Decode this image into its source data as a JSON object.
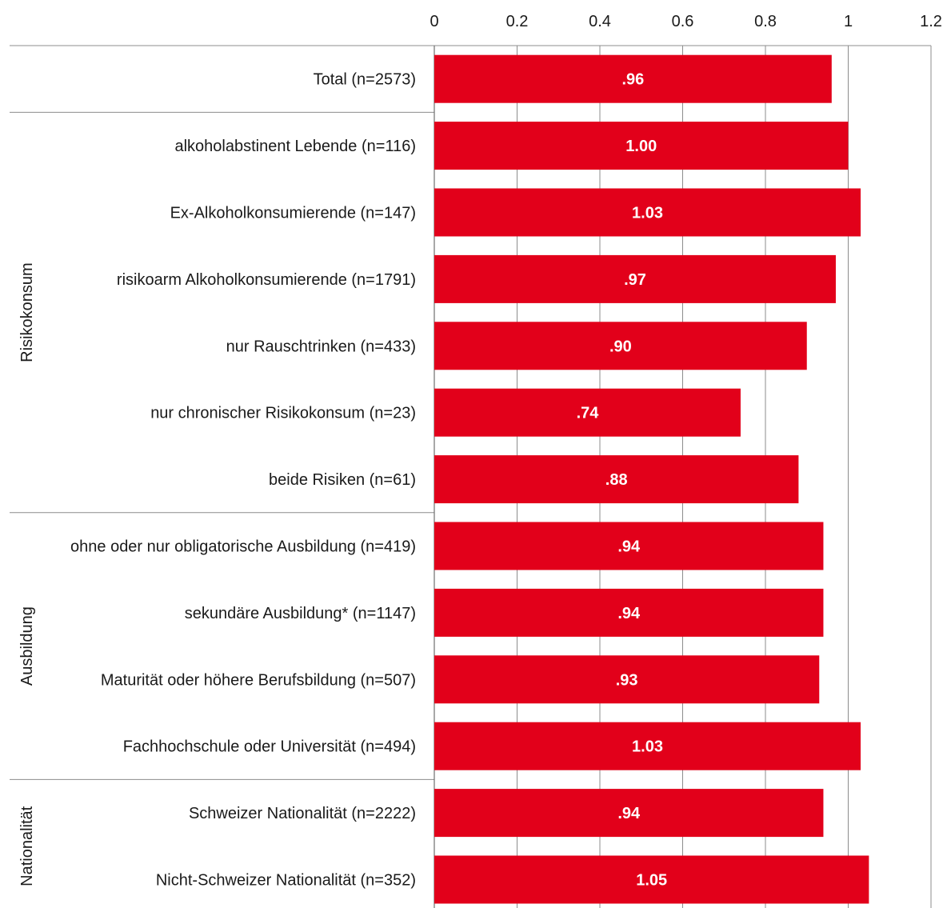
{
  "chart_data": {
    "type": "bar",
    "orientation": "horizontal",
    "title": "",
    "xlabel": "",
    "ylabel": "",
    "xlim": [
      0,
      1.2
    ],
    "x_ticks": [
      0,
      0.2,
      0.4,
      0.6,
      0.8,
      1,
      1.2
    ],
    "x_tick_labels": [
      "0",
      "0.2",
      "0.4",
      "0.6",
      "0.8",
      "1",
      "1.2"
    ],
    "grid": true,
    "legend": "none",
    "bar_color": "#e2001a",
    "categories": [
      "Total (n=2573)",
      "alkoholabstinent Lebende (n=116)",
      "Ex-Alkoholkonsumierende (n=147)",
      "risikoarm Alkoholkonsumierende (n=1791)",
      "nur Rauschtrinken (n=433)",
      "nur chronischer Risikokonsum (n=23)",
      "beide Risiken (n=61)",
      "ohne oder nur obligatorische Ausbildung (n=419)",
      "sekundäre Ausbildung* (n=1147)",
      "Maturität oder höhere Berufsbildung (n=507)",
      "Fachhochschule oder Universität (n=494)",
      "Schweizer Nationalität (n=2222)",
      "Nicht-Schweizer Nationalität (n=352)"
    ],
    "values": [
      0.96,
      1.0,
      1.03,
      0.97,
      0.9,
      0.74,
      0.88,
      0.94,
      0.94,
      0.93,
      1.03,
      0.94,
      1.05
    ],
    "value_labels": [
      ".96",
      "1.00",
      "1.03",
      ".97",
      ".90",
      ".74",
      ".88",
      ".94",
      ".94",
      ".93",
      "1.03",
      ".94",
      "1.05"
    ],
    "groups": [
      {
        "label": "",
        "start": 0,
        "end": 0
      },
      {
        "label": "Risikokonsum",
        "start": 1,
        "end": 6
      },
      {
        "label": "Ausbildung",
        "start": 7,
        "end": 10
      },
      {
        "label": "Nationalität",
        "start": 11,
        "end": 12
      }
    ]
  }
}
